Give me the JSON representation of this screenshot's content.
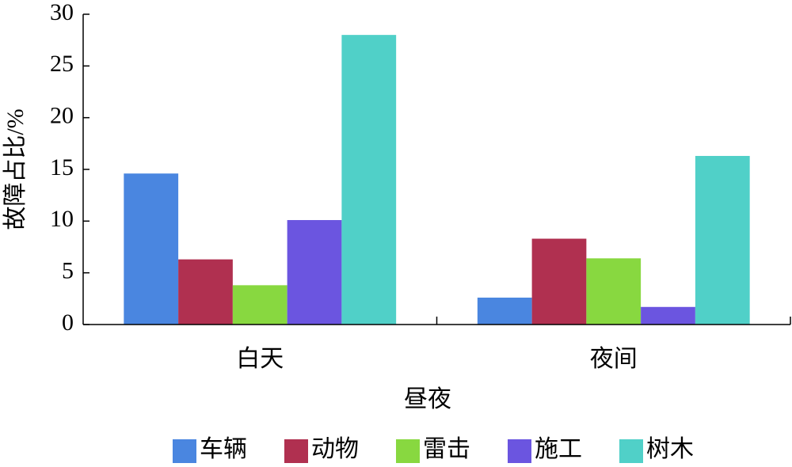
{
  "chart_data": {
    "type": "bar",
    "x_label": "昼夜",
    "y_label": "故障占比/%",
    "categories": [
      "白天",
      "夜间"
    ],
    "series": [
      {
        "name": "车辆",
        "color": "#4a86e0",
        "values": [
          14.6,
          2.6
        ]
      },
      {
        "name": "动物",
        "color": "#b03050",
        "values": [
          6.3,
          8.3
        ]
      },
      {
        "name": "雷击",
        "color": "#88d840",
        "values": [
          3.8,
          6.4
        ]
      },
      {
        "name": "施工",
        "color": "#6b55e0",
        "values": [
          10.1,
          1.7
        ]
      },
      {
        "name": "树木",
        "color": "#50d0c8",
        "values": [
          28.0,
          16.3
        ]
      }
    ],
    "ylim": [
      0,
      30
    ],
    "yticks": [
      0,
      5,
      10,
      15,
      20,
      25,
      30
    ],
    "grid": false,
    "legend": "bottom"
  }
}
